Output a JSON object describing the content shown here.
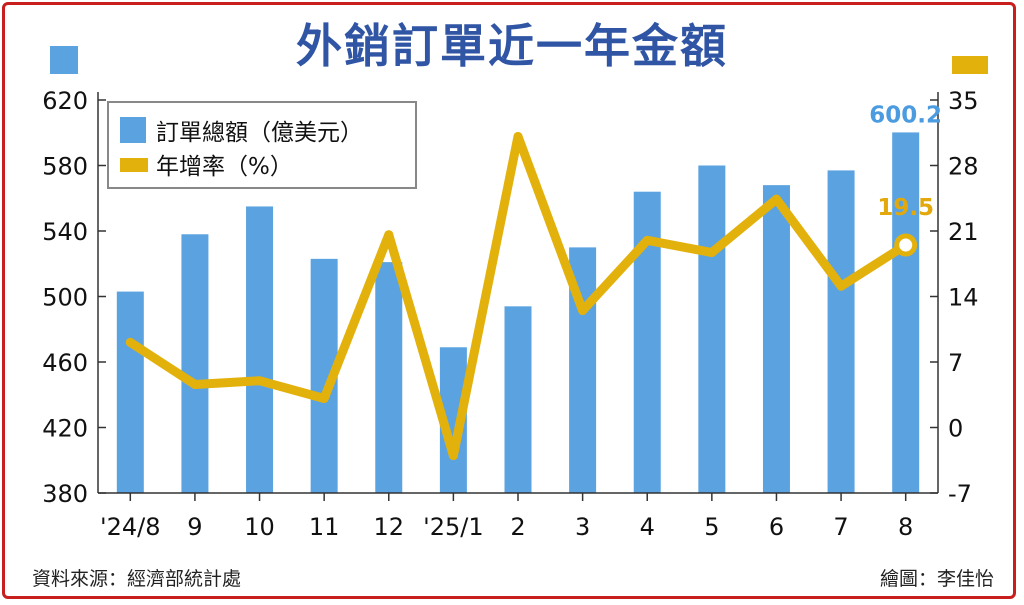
{
  "title": "外銷訂單近一年金額",
  "source": "資料來源：經濟部統計處",
  "credit": "繪圖：李佳怡",
  "chart_data": {
    "type": "bar",
    "categories": [
      "'24/8",
      "9",
      "10",
      "11",
      "12",
      "'25/1",
      "2",
      "3",
      "4",
      "5",
      "6",
      "7",
      "8"
    ],
    "series": [
      {
        "name": "訂單總額（億美元）",
        "type": "bar",
        "axis": "left",
        "color": "#5aa3e0",
        "values": [
          503,
          538,
          555,
          523,
          521,
          469,
          494,
          530,
          564,
          580,
          568,
          577,
          600.2
        ]
      },
      {
        "name": "年增率（%）",
        "type": "line",
        "axis": "right",
        "color": "#e3b10c",
        "values": [
          9.1,
          4.6,
          5.0,
          3.1,
          20.6,
          -3.0,
          31.1,
          12.5,
          20.0,
          18.7,
          24.4,
          15.1,
          19.5
        ]
      }
    ],
    "left_axis": {
      "ticks": [
        "380",
        "420",
        "460",
        "500",
        "540",
        "580",
        "620"
      ],
      "ylim": [
        380,
        620
      ]
    },
    "right_axis": {
      "ticks": [
        "-7",
        "0",
        "7",
        "14",
        "21",
        "28",
        "35"
      ],
      "ylim": [
        -7,
        35
      ]
    },
    "annotations": [
      {
        "label": "600.2",
        "series": 0,
        "index": 12
      },
      {
        "label": "19.5",
        "series": 1,
        "index": 12
      }
    ],
    "legend": "top-left",
    "grid": false
  }
}
